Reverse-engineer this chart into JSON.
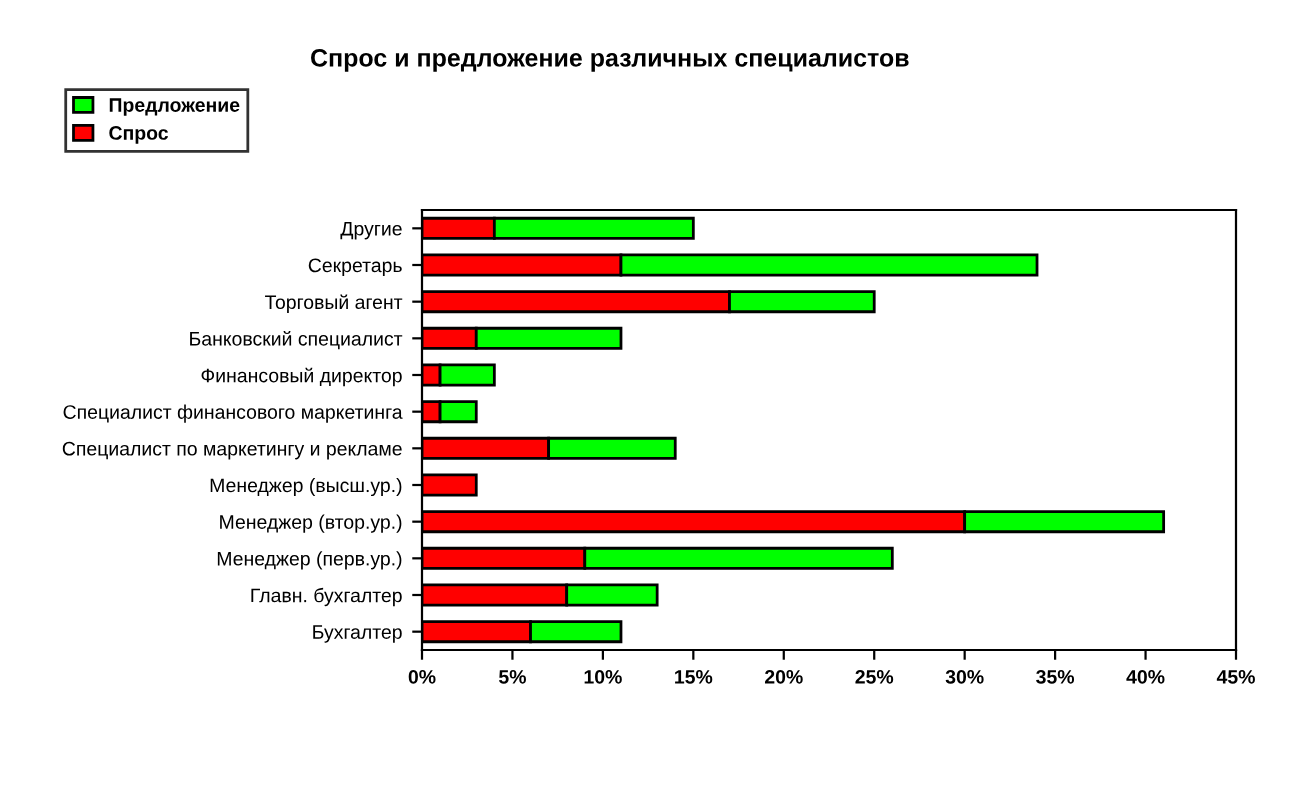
{
  "chart_data": {
    "type": "bar",
    "orientation": "horizontal",
    "stacked": true,
    "title": "Спрос и предложение различных специалистов",
    "categories": [
      "Другие",
      "Секретарь",
      "Торговый агент",
      "Банковский специалист",
      "Финансовый директор",
      "Специалист финансового маркетинга",
      "Специалист по маркетингу и рекламе",
      "Менеджер (высш.ур.)",
      "Менеджер (втор.ур.)",
      "Менеджер (перв.ур.)",
      "Главн. бухгалтер",
      "Бухгалтер"
    ],
    "series": [
      {
        "name": "Спрос",
        "color": "#ff0000",
        "values": [
          4,
          11,
          17,
          3,
          1,
          1,
          7,
          3,
          30,
          9,
          8,
          6
        ]
      },
      {
        "name": "Предложение",
        "color": "#00ff00",
        "values": [
          11,
          23,
          8,
          8,
          3,
          2,
          7,
          0,
          11,
          17,
          5,
          5
        ]
      }
    ],
    "xlim": [
      0,
      45
    ],
    "xticks": [
      {
        "value": 0,
        "label": "0%"
      },
      {
        "value": 5,
        "label": "5%"
      },
      {
        "value": 10,
        "label": "10%"
      },
      {
        "value": 15,
        "label": "15%"
      },
      {
        "value": 20,
        "label": "20%"
      },
      {
        "value": 25,
        "label": "25%"
      },
      {
        "value": 30,
        "label": "30%"
      },
      {
        "value": 35,
        "label": "35%"
      },
      {
        "value": 40,
        "label": "40%"
      },
      {
        "value": 45,
        "label": "45%"
      }
    ],
    "grid": false,
    "legend": "top left"
  }
}
